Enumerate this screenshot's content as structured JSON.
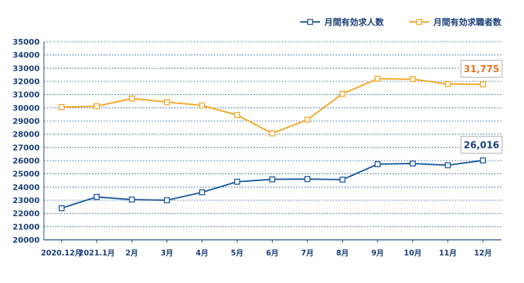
{
  "chart_data": {
    "type": "line",
    "categories": [
      "2020.12月",
      "2021.1月",
      "2月",
      "3月",
      "4月",
      "5月",
      "6月",
      "7月",
      "8月",
      "9月",
      "10月",
      "11月",
      "12月"
    ],
    "ylim": [
      20000,
      35000
    ],
    "yticks": [
      20000,
      21000,
      22000,
      23000,
      24000,
      25000,
      26000,
      27000,
      28000,
      29000,
      30000,
      31000,
      32000,
      33000,
      34000,
      35000
    ],
    "grid": true,
    "legend_position": "top-right",
    "series": [
      {
        "name": "月間有効求人数",
        "color": "#1a5a9e",
        "values": [
          22400,
          23250,
          23050,
          23000,
          23600,
          24400,
          24580,
          24600,
          24560,
          25730,
          25780,
          25650,
          26016
        ]
      },
      {
        "name": "月間有効求職者数",
        "color": "#f5a623",
        "values": [
          30050,
          30120,
          30700,
          30430,
          30180,
          29450,
          28060,
          29100,
          31060,
          32200,
          32170,
          31800,
          31775
        ]
      }
    ],
    "annotations": [
      {
        "series": 1,
        "text": "31,775",
        "color": "#e8731e"
      },
      {
        "series": 0,
        "text": "26,016",
        "color": "#1a3f7a"
      }
    ]
  }
}
